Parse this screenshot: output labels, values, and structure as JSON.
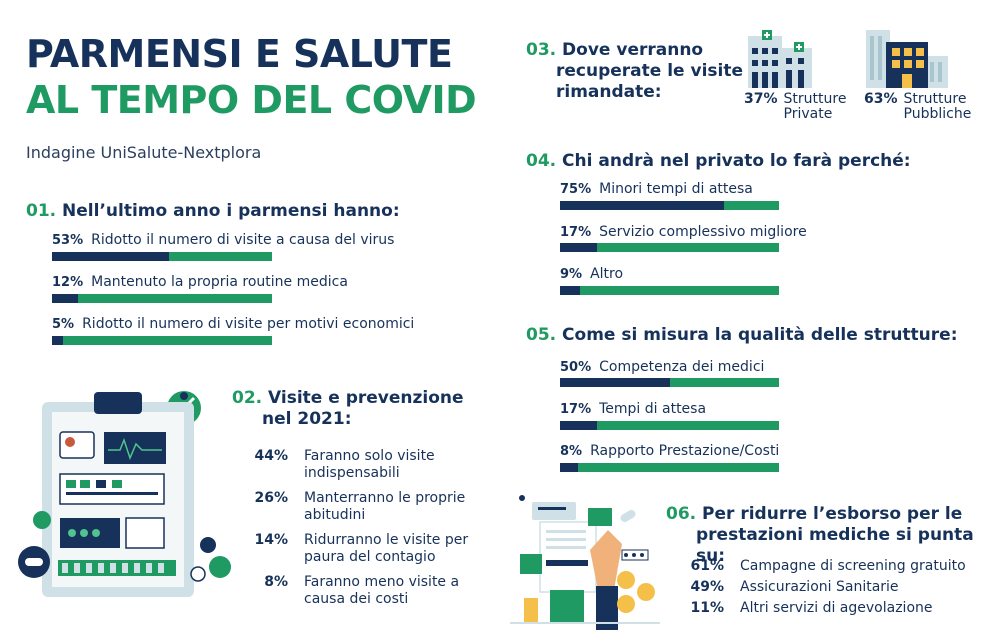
{
  "header": {
    "title_line1": "PARMENSI E SALUTE",
    "title_line2": "AL TEMPO DEL COVID",
    "subtitle": "Indagine UniSalute-Nextplora"
  },
  "colors": {
    "navy": "#17325a",
    "green": "#1f9a62"
  },
  "sec01": {
    "num": "01.",
    "heading": "Nell’ultimo anno i parmensi hanno:",
    "items": [
      {
        "pct": "53%",
        "value": 0.53,
        "label": "Ridotto il numero di visite a causa del virus"
      },
      {
        "pct": "12%",
        "value": 0.12,
        "label": "Mantenuto la propria routine medica"
      },
      {
        "pct": "5%",
        "value": 0.05,
        "label": "Ridotto il numero di visite per motivi economici"
      }
    ]
  },
  "sec02": {
    "num": "02.",
    "heading_line1": "Visite e prevenzione",
    "heading_line2": "nel 2021:",
    "items": [
      {
        "pct": "44%",
        "line1": "Faranno solo visite",
        "line2": "indispensabili"
      },
      {
        "pct": "26%",
        "line1": "Manterranno le proprie",
        "line2": "abitudini"
      },
      {
        "pct": "14%",
        "line1": "Ridurranno le visite per",
        "line2": "paura del contagio"
      },
      {
        "pct": "8%",
        "line1": "Faranno meno visite a",
        "line2": "causa dei costi"
      }
    ]
  },
  "sec03": {
    "num": "03.",
    "heading_line1": "Dove verranno",
    "heading_line2": "recuperate le visite",
    "heading_line3": "rimandate:",
    "private": {
      "pct": "37%",
      "line1": "Strutture",
      "line2": "Private",
      "icon": "private-hospital-icon"
    },
    "public": {
      "pct": "63%",
      "line1": "Strutture",
      "line2": "Pubbliche",
      "icon": "public-building-icon"
    }
  },
  "sec04": {
    "num": "04.",
    "heading": "Chi andrà nel privato lo farà perché:",
    "items": [
      {
        "pct": "75%",
        "value": 0.75,
        "label": "Minori tempi di attesa"
      },
      {
        "pct": "17%",
        "value": 0.17,
        "label": "Servizio complessivo migliore"
      },
      {
        "pct": "9%",
        "value": 0.09,
        "label": "Altro"
      }
    ]
  },
  "sec05": {
    "num": "05.",
    "heading": "Come si misura la qualità delle strutture:",
    "items": [
      {
        "pct": "50%",
        "value": 0.5,
        "label": "Competenza dei medici"
      },
      {
        "pct": "17%",
        "value": 0.17,
        "label": "Tempi di attesa"
      },
      {
        "pct": "8%",
        "value": 0.08,
        "label": "Rapporto Prestazione/Costi"
      }
    ]
  },
  "sec06": {
    "num": "06.",
    "heading_line1": "Per ridurre l’esborso per le",
    "heading_line2": "prestazioni mediche si punta su:",
    "items": [
      {
        "pct": "61%",
        "label": "Campagne di screening gratuito"
      },
      {
        "pct": "49%",
        "label": "Assicurazioni Sanitarie"
      },
      {
        "pct": "11%",
        "label": "Altri servizi di agevolazione"
      }
    ]
  }
}
